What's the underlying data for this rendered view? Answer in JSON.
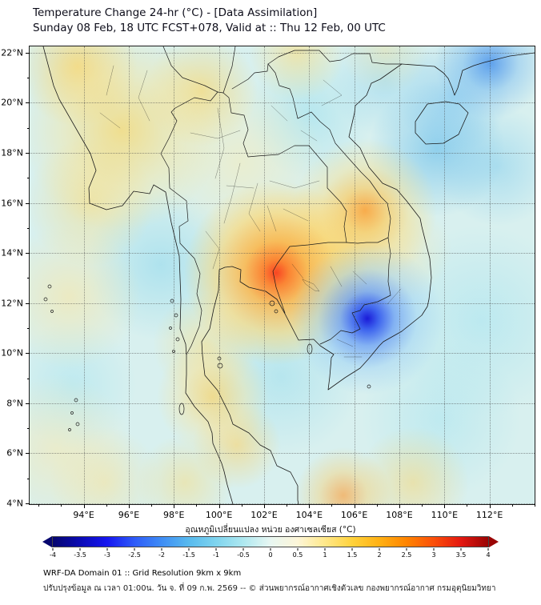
{
  "header": {
    "title": "Temperature Change 24-hr (°C) - [Data Assimilation]",
    "subtitle": "Sunday 08 Feb, 18 UTC FCST+078, Valid at :: Thu 12 Feb, 00 UTC"
  },
  "map": {
    "x_axis": {
      "min": 91.6,
      "max": 114.0,
      "minor_step": 1,
      "major_ticks": [
        {
          "value": 94,
          "label": "94°E"
        },
        {
          "value": 96,
          "label": "96°E"
        },
        {
          "value": 98,
          "label": "98°E"
        },
        {
          "value": 100,
          "label": "100°E"
        },
        {
          "value": 102,
          "label": "102°E"
        },
        {
          "value": 104,
          "label": "104°E"
        },
        {
          "value": 106,
          "label": "106°E"
        },
        {
          "value": 108,
          "label": "108°E"
        },
        {
          "value": 110,
          "label": "110°E"
        },
        {
          "value": 112,
          "label": "112°E"
        }
      ]
    },
    "y_axis": {
      "min": 3.97,
      "max": 22.25,
      "minor_step": 1,
      "major_ticks": [
        {
          "value": 22,
          "label": "22°N"
        },
        {
          "value": 20,
          "label": "20°N"
        },
        {
          "value": 18,
          "label": "18°N"
        },
        {
          "value": 16,
          "label": "16°N"
        },
        {
          "value": 14,
          "label": "14°N"
        },
        {
          "value": 12,
          "label": "12°N"
        },
        {
          "value": 10,
          "label": "10°N"
        },
        {
          "value": 8,
          "label": "8°N"
        },
        {
          "value": 6,
          "label": "6°N"
        },
        {
          "value": 4,
          "label": "4°N"
        }
      ]
    }
  },
  "colorbar": {
    "label": "อุณหภูมิเปลี่ยนแปลง หน่วย องศาเซลเซียส (°C)",
    "min": -4,
    "max": 4,
    "tick_labels": [
      "-4",
      "-3.5",
      "-3",
      "-2.5",
      "-2",
      "-1.5",
      "-1",
      "-0.5",
      "0",
      "0.5",
      "1",
      "1.5",
      "2",
      "2.5",
      "3",
      "3.5",
      "4"
    ],
    "gradient_colors": [
      "#06066e",
      "#0a0ab4",
      "#1616f0",
      "#2e5bf8",
      "#3f8df5",
      "#58baee",
      "#7fd4ee",
      "#aee8f0",
      "#e8f7f2",
      "#fdf6d8",
      "#ffe88a",
      "#ffd23c",
      "#ffb114",
      "#ff8400",
      "#fb4f0a",
      "#e31810",
      "#9a0404"
    ]
  },
  "footer": {
    "line1": "WRF-DA Domain 01 :: Grid Resolution 9km x 9km",
    "line2": "ปรับปรุงข้อมูล ณ เวลา 01:00น. วัน จ. ที่ 09 ก.พ. 2569 -- © ส่วนพยากรณ์อากาศเชิงตัวเลข กองพยากรณ์อากาศ กรมอุตุนิยมวิทยา"
  }
}
